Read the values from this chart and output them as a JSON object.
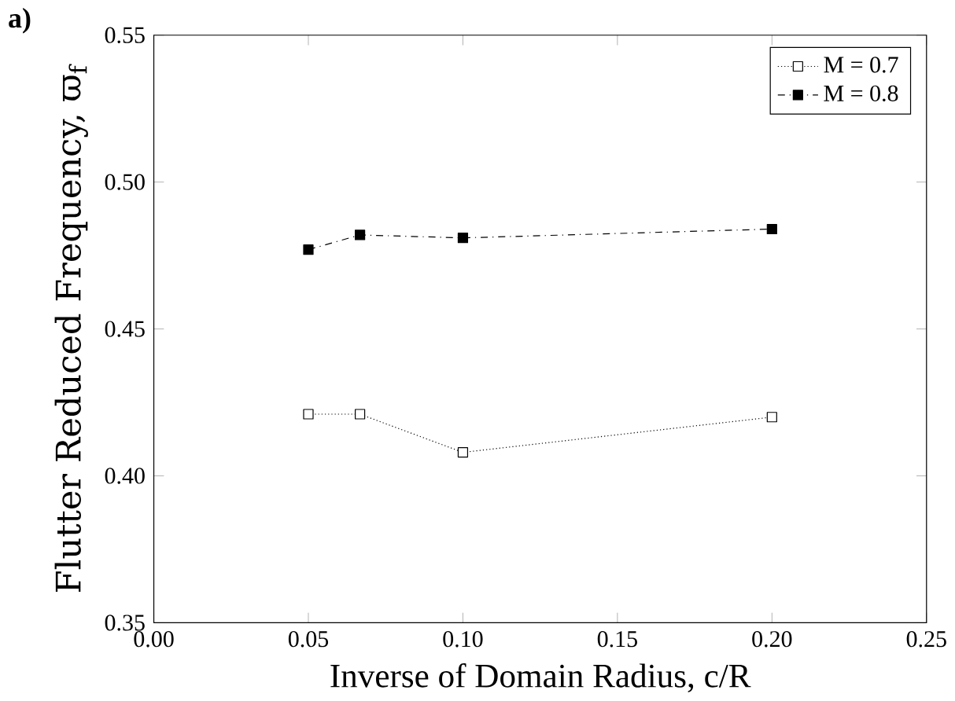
{
  "chart_data": {
    "type": "line",
    "title": "a)",
    "xlabel": "Inverse of Domain Radius, c/R",
    "ylabel": "Flutter Reduced Frequency, ϖ$_{f}$",
    "xlim": [
      0.0,
      0.25
    ],
    "xticks": [
      {
        "value": 0.0,
        "label": "0.00"
      },
      0.05,
      {
        "value": 0.1,
        "label": "0.10"
      },
      0.15,
      {
        "value": 0.2,
        "label": "0.20"
      },
      0.25
    ],
    "ylim": [
      0.35,
      0.55
    ],
    "yticks": [
      0.35,
      {
        "value": 0.4,
        "label": "0.40"
      },
      0.45,
      {
        "value": 0.5,
        "label": "0.50"
      },
      0.55
    ],
    "legend": "top right",
    "grid": false,
    "marker": "square",
    "series": [
      {
        "name": "M = 0.7",
        "color": "#000000",
        "line_style": "dotted",
        "x": [
          0.05,
          0.0667,
          0.1,
          0.2
        ],
        "values": [
          0.421,
          0.421,
          0.408,
          0.42
        ]
      },
      {
        "name": "M = 0.8",
        "color": "#000000",
        "line_style": "dashed",
        "x": [
          0.05,
          0.0667,
          0.1,
          0.2
        ],
        "values": [
          0.477,
          0.482,
          0.481,
          0.484
        ]
      }
    ]
  }
}
